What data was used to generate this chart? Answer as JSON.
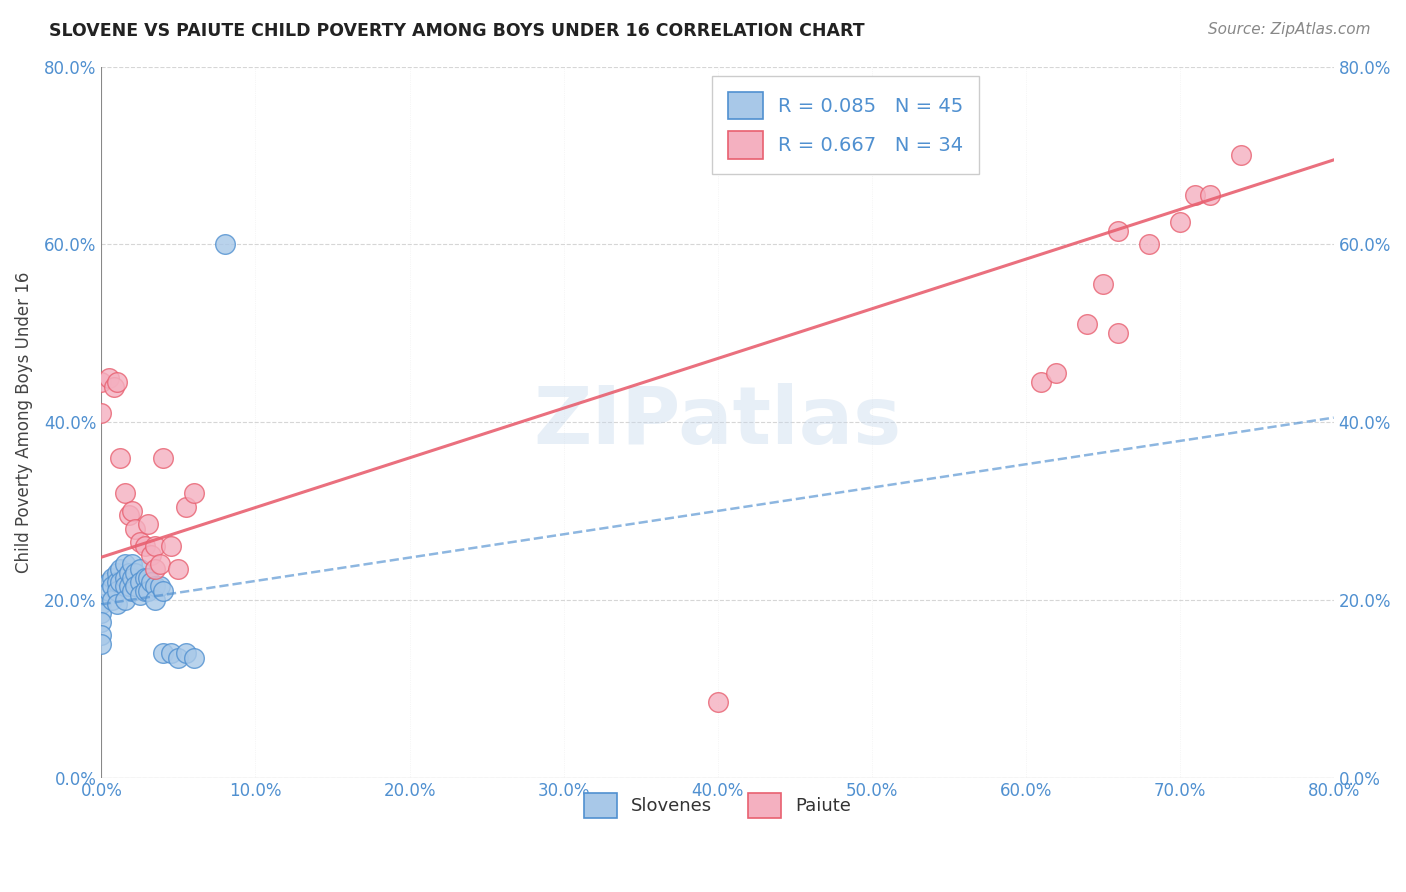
{
  "title": "SLOVENE VS PAIUTE CHILD POVERTY AMONG BOYS UNDER 16 CORRELATION CHART",
  "source": "Source: ZipAtlas.com",
  "ylabel": "Child Poverty Among Boys Under 16",
  "xlim": [
    0,
    0.8
  ],
  "ylim": [
    0,
    0.8
  ],
  "xtick_vals": [
    0.0,
    0.1,
    0.2,
    0.3,
    0.4,
    0.5,
    0.6,
    0.7,
    0.8
  ],
  "ytick_vals": [
    0.0,
    0.2,
    0.4,
    0.6,
    0.8
  ],
  "slovene_color": "#a8c8e8",
  "paiute_color": "#f4b0c0",
  "slovene_line_color": "#5090d0",
  "paiute_line_color": "#e86070",
  "slovene_R": 0.085,
  "slovene_N": 45,
  "paiute_R": 0.667,
  "paiute_N": 34,
  "legend_slovene_label": "Slovenes",
  "legend_paiute_label": "Paiute",
  "watermark": "ZIPatlas",
  "slovene_x": [
    0.0,
    0.0,
    0.0,
    0.0,
    0.0,
    0.005,
    0.005,
    0.007,
    0.007,
    0.007,
    0.01,
    0.01,
    0.01,
    0.01,
    0.012,
    0.012,
    0.015,
    0.015,
    0.015,
    0.015,
    0.018,
    0.018,
    0.02,
    0.02,
    0.02,
    0.022,
    0.022,
    0.025,
    0.025,
    0.025,
    0.028,
    0.028,
    0.03,
    0.03,
    0.032,
    0.035,
    0.035,
    0.038,
    0.04,
    0.04,
    0.045,
    0.05,
    0.055,
    0.06,
    0.08
  ],
  "slovene_y": [
    0.195,
    0.185,
    0.175,
    0.16,
    0.15,
    0.22,
    0.21,
    0.225,
    0.215,
    0.2,
    0.23,
    0.22,
    0.21,
    0.195,
    0.235,
    0.22,
    0.24,
    0.225,
    0.215,
    0.2,
    0.23,
    0.215,
    0.24,
    0.225,
    0.21,
    0.23,
    0.215,
    0.235,
    0.22,
    0.205,
    0.225,
    0.21,
    0.225,
    0.21,
    0.22,
    0.215,
    0.2,
    0.215,
    0.21,
    0.14,
    0.14,
    0.135,
    0.14,
    0.135,
    0.6
  ],
  "paiute_x": [
    0.0,
    0.0,
    0.005,
    0.008,
    0.01,
    0.012,
    0.015,
    0.018,
    0.02,
    0.022,
    0.025,
    0.028,
    0.03,
    0.032,
    0.035,
    0.035,
    0.038,
    0.04,
    0.045,
    0.05,
    0.055,
    0.06,
    0.4,
    0.61,
    0.62,
    0.64,
    0.65,
    0.66,
    0.66,
    0.68,
    0.7,
    0.71,
    0.72,
    0.74
  ],
  "paiute_y": [
    0.445,
    0.41,
    0.45,
    0.44,
    0.445,
    0.36,
    0.32,
    0.295,
    0.3,
    0.28,
    0.265,
    0.26,
    0.285,
    0.25,
    0.26,
    0.235,
    0.24,
    0.36,
    0.26,
    0.235,
    0.305,
    0.32,
    0.085,
    0.445,
    0.455,
    0.51,
    0.555,
    0.5,
    0.615,
    0.6,
    0.625,
    0.655,
    0.655,
    0.7
  ],
  "paiute_line_start_x": 0.0,
  "paiute_line_start_y": 0.248,
  "paiute_line_end_x": 0.8,
  "paiute_line_end_y": 0.695,
  "slovene_line_start_x": 0.0,
  "slovene_line_start_y": 0.195,
  "slovene_line_end_x": 0.8,
  "slovene_line_end_y": 0.405
}
